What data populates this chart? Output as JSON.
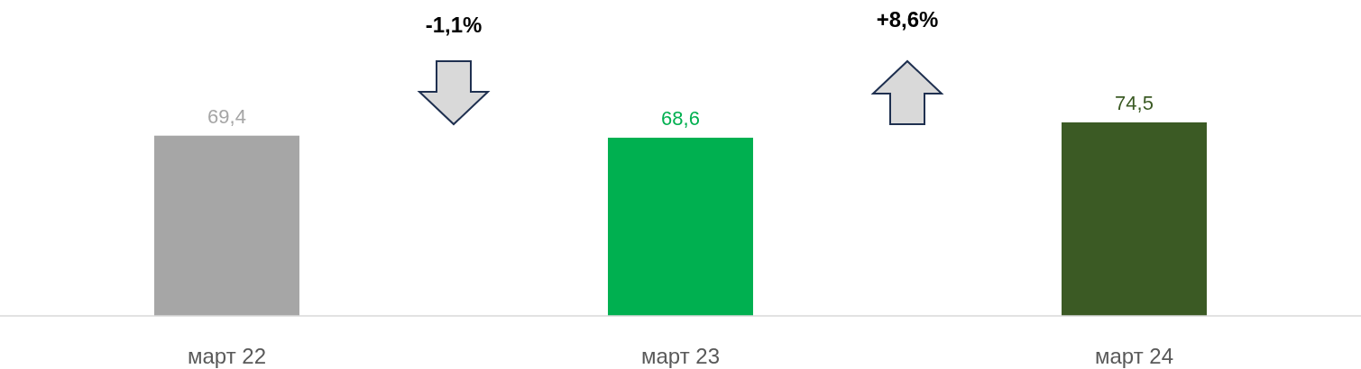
{
  "chart_data": {
    "type": "bar",
    "categories": [
      "март 22",
      "март 23",
      "март 24"
    ],
    "values": [
      69.4,
      68.6,
      74.5
    ],
    "value_labels": [
      "69,4",
      "68,6",
      "74,5"
    ],
    "colors": [
      "#a6a6a6",
      "#00b050",
      "#3b5a24"
    ],
    "annotations": [
      "-1,1%",
      "+8,6%"
    ]
  }
}
